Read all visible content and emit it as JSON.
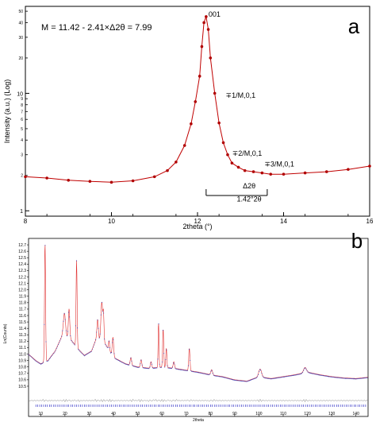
{
  "panels": {
    "a": {
      "letter": "a"
    },
    "b": {
      "letter": "b"
    }
  },
  "colors": {
    "marker": "#b00000",
    "line": "#c00000",
    "obs": "#3a3ab0",
    "calc": "#e03030",
    "diff": "#808080",
    "ticks": "#2020c0"
  },
  "chart_data": [
    {
      "type": "scatter",
      "panel": "a",
      "title": "",
      "xlabel": "2theta (°)",
      "ylabel": "Intensity (a.u.) (Log)",
      "xlim": [
        8,
        16
      ],
      "ylim": [
        0.9,
        55
      ],
      "yscale": "log",
      "xticks": [
        8,
        10,
        12,
        14,
        16
      ],
      "yticks_major": [
        1,
        10
      ],
      "yticks_minor": [
        2,
        3,
        4,
        5,
        6,
        7,
        8,
        9,
        20,
        30,
        40,
        50
      ],
      "grid": false,
      "series": [
        {
          "x": [
            8.0,
            8.5,
            9.0,
            9.5,
            10.0,
            10.5,
            11.0,
            11.3,
            11.5,
            11.7,
            11.85,
            11.95,
            12.05,
            12.1,
            12.15,
            12.2,
            12.25,
            12.3,
            12.4,
            12.5,
            12.6,
            12.7,
            12.8,
            12.95,
            13.1,
            13.3,
            13.5,
            13.7,
            14.0,
            14.5,
            15.0,
            15.5,
            16.0
          ],
          "y": [
            1.95,
            1.9,
            1.82,
            1.78,
            1.75,
            1.8,
            1.95,
            2.2,
            2.6,
            3.6,
            5.5,
            8.5,
            14,
            25,
            40,
            45,
            35,
            20,
            10,
            5.6,
            3.8,
            3.0,
            2.55,
            2.35,
            2.2,
            2.15,
            2.1,
            2.05,
            2.05,
            2.1,
            2.15,
            2.25,
            2.4
          ]
        }
      ],
      "annotations": [
        {
          "text": "001",
          "x": 12.2,
          "y": 45
        },
        {
          "text": "∓1/M,0,1",
          "x": 12.6,
          "y": 9.2
        },
        {
          "text": "∓2/M,0,1",
          "x": 12.75,
          "y": 2.95
        },
        {
          "text": "∓3/M,0,1",
          "x": 13.5,
          "y": 2.38
        },
        {
          "text": "Δ2θ",
          "x": 13.2,
          "y": 1.55
        },
        {
          "text": "1.42°2θ",
          "x": 13.2,
          "y": 1.2
        }
      ],
      "formula": "M = 11.42 - 2.41×Δ2θ = 7.99",
      "bracket": [
        12.2,
        13.62
      ]
    },
    {
      "type": "line",
      "panel": "b",
      "title": "",
      "xlabel": "2theta",
      "ylabel": "Ln(Counts)",
      "xlim": [
        5,
        145
      ],
      "ylim": [
        10.45,
        12.8
      ],
      "xticks": [
        10,
        20,
        30,
        40,
        50,
        60,
        70,
        80,
        90,
        100,
        110,
        120,
        130,
        140
      ],
      "yticks": [
        10.5,
        10.6,
        10.7,
        10.8,
        10.9,
        11.0,
        11.1,
        11.2,
        11.3,
        11.4,
        11.5,
        11.6,
        11.7,
        11.8,
        11.9,
        12.0,
        12.1,
        12.2,
        12.3,
        12.4,
        12.5,
        12.6,
        12.7
      ],
      "grid": false,
      "baseline": [
        [
          5,
          11.0
        ],
        [
          8,
          10.9
        ],
        [
          10,
          10.85
        ],
        [
          13,
          10.9
        ],
        [
          16,
          11.05
        ],
        [
          19,
          11.3
        ],
        [
          22,
          11.25
        ],
        [
          25,
          11.1
        ],
        [
          28,
          10.98
        ],
        [
          31,
          11.05
        ],
        [
          33,
          11.25
        ],
        [
          36,
          11.2
        ],
        [
          40,
          10.95
        ],
        [
          45,
          10.85
        ],
        [
          50,
          10.8
        ],
        [
          55,
          10.78
        ],
        [
          60,
          10.8
        ],
        [
          65,
          10.78
        ],
        [
          70,
          10.75
        ],
        [
          75,
          10.72
        ],
        [
          80,
          10.68
        ],
        [
          85,
          10.65
        ],
        [
          90,
          10.6
        ],
        [
          95,
          10.58
        ],
        [
          100,
          10.65
        ],
        [
          105,
          10.62
        ],
        [
          110,
          10.65
        ],
        [
          115,
          10.68
        ],
        [
          120,
          10.72
        ],
        [
          125,
          10.68
        ],
        [
          130,
          10.65
        ],
        [
          135,
          10.63
        ],
        [
          140,
          10.62
        ],
        [
          145,
          10.64
        ]
      ],
      "peaks": [
        [
          11.8,
          1.85,
          0.3
        ],
        [
          19.8,
          0.35,
          0.6
        ],
        [
          21.7,
          0.45,
          0.4
        ],
        [
          24.8,
          1.35,
          0.3
        ],
        [
          33.5,
          0.3,
          0.4
        ],
        [
          35.2,
          0.6,
          0.5
        ],
        [
          35.9,
          0.4,
          0.3
        ],
        [
          38.2,
          0.15,
          0.3
        ],
        [
          39.8,
          0.3,
          0.4
        ],
        [
          47.2,
          0.12,
          0.4
        ],
        [
          51.4,
          0.12,
          0.4
        ],
        [
          55.5,
          0.1,
          0.4
        ],
        [
          58.6,
          0.7,
          0.25
        ],
        [
          60.5,
          0.6,
          0.3
        ],
        [
          61.8,
          0.3,
          0.3
        ],
        [
          64.9,
          0.1,
          0.4
        ],
        [
          71.3,
          0.35,
          0.35
        ],
        [
          80.5,
          0.08,
          0.5
        ],
        [
          100.5,
          0.12,
          0.8
        ],
        [
          119,
          0.08,
          0.8
        ]
      ]
    }
  ]
}
